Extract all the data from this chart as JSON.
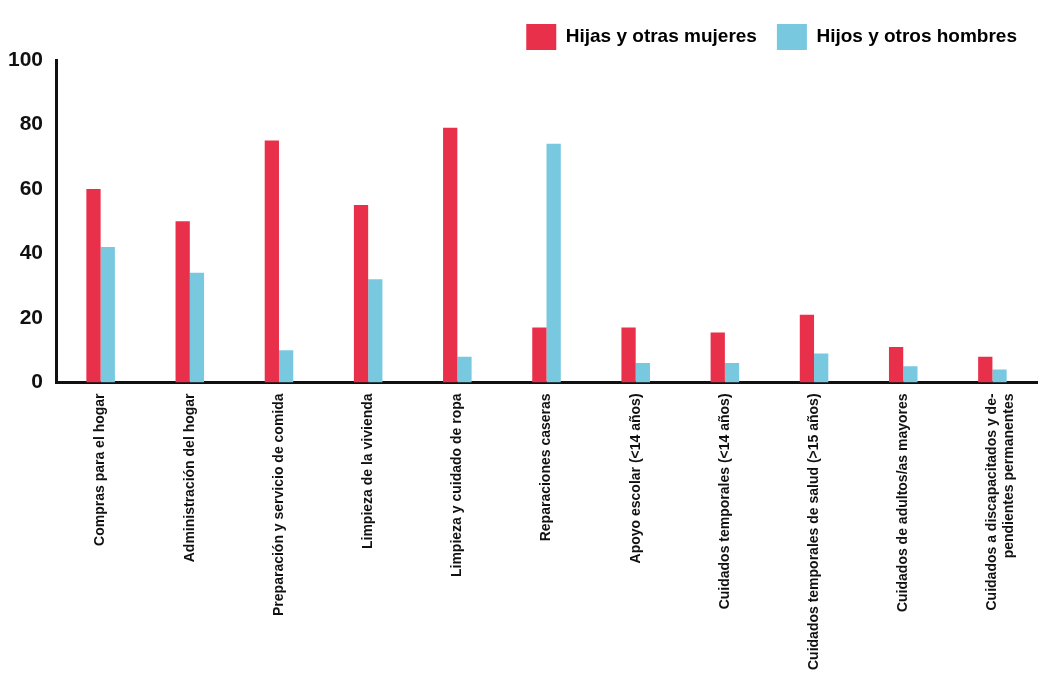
{
  "chart_data": {
    "type": "bar",
    "categories": [
      "Compras para el hogar",
      "Administración del hogar",
      "Preparación y servicio de comida",
      "Limpieza de la vivienda",
      "Limpieza y cuidado de ropa",
      "Reparaciones caseras",
      "Apoyo escolar (<14 años)",
      "Cuidados temporales (<14 años)",
      "Cuidados temporales de salud (>15 años)",
      "Cuidados de adultos/as mayores",
      "Cuidados a discapacitados y de-\npendientes permanentes"
    ],
    "series": [
      {
        "name": "Hijas y otras mujeres",
        "color": "#e8304a",
        "values": [
          60,
          50,
          75,
          55,
          79,
          17,
          17,
          15.5,
          21,
          11,
          8
        ]
      },
      {
        "name": "Hijos y otros hombres",
        "color": "#78c9e0",
        "values": [
          42,
          34,
          10,
          32,
          8,
          74,
          6,
          6,
          9,
          5,
          4
        ]
      }
    ],
    "ylim": [
      0,
      100
    ],
    "yticks": [
      0,
      20,
      40,
      60,
      80,
      100
    ],
    "grid": false,
    "legend": "top right"
  }
}
